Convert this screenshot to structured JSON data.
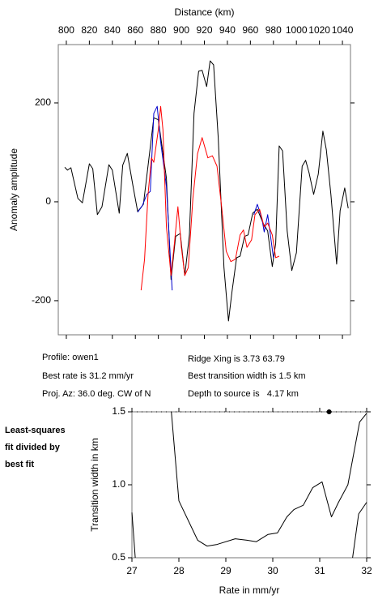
{
  "chart_data": [
    {
      "type": "line",
      "title": "Distance (km)",
      "y_label": "Anomaly amplitude",
      "xaxis_position": "top",
      "xlim": [
        793,
        1047
      ],
      "ylim": [
        -269,
        318
      ],
      "xticks": [
        800,
        820,
        840,
        860,
        880,
        900,
        920,
        940,
        960,
        980,
        1000,
        1020,
        1040
      ],
      "yticks": [
        200,
        0,
        -200
      ],
      "series": [
        {
          "color": "#000000",
          "x": [
            798.6,
            801,
            804,
            810,
            814,
            820,
            823,
            827,
            831,
            837,
            840,
            846,
            849,
            853,
            858,
            862,
            867,
            876,
            880,
            887,
            891,
            895,
            899,
            903,
            907,
            911,
            915,
            918,
            922,
            925,
            928,
            932,
            937,
            941,
            944,
            948,
            951,
            955,
            958,
            962,
            966,
            971,
            975,
            979,
            982,
            985,
            988,
            992,
            996,
            1000,
            1005,
            1008,
            1011,
            1015,
            1019,
            1023,
            1026,
            1030,
            1035,
            1038,
            1042,
            1045
          ],
          "values": [
            70,
            64,
            69,
            7,
            -2,
            77,
            67,
            -26,
            -10,
            75,
            64,
            -23,
            74,
            98,
            31,
            -20,
            -5,
            170,
            166,
            48,
            -157,
            -70,
            -64,
            -149,
            -67,
            179,
            264,
            266,
            233,
            285,
            277,
            130,
            -133,
            -241,
            -182,
            -113,
            -110,
            -70,
            -67,
            -23,
            -15,
            -43,
            -59,
            -131,
            -84,
            113,
            103,
            -59,
            -139,
            -103,
            72,
            84,
            59,
            15,
            56,
            143,
            105,
            15,
            -126,
            -18,
            28,
            -13
          ]
        },
        {
          "color": "#0000cc",
          "x": [
            862,
            866,
            870,
            873,
            876,
            879,
            882,
            887,
            892,
            930,
            963,
            966,
            970,
            972,
            975,
            980
          ],
          "values": [
            -21,
            -8,
            15,
            21,
            179,
            193,
            121,
            31,
            -179,
            null,
            -26,
            -5,
            -34,
            -61,
            -26,
            -113
          ]
        },
        {
          "color": "#ff0000",
          "x": [
            865,
            868,
            871,
            874,
            876,
            880,
            882,
            884,
            887,
            891,
            894,
            897,
            900,
            903,
            906,
            910,
            914,
            918,
            923,
            927,
            931,
            935,
            939,
            943,
            947,
            951,
            954,
            957,
            961,
            964,
            968,
            972,
            975,
            979,
            982,
            985
          ],
          "values": [
            -179,
            -116,
            15,
            89,
            80,
            146,
            193,
            146,
            -51,
            -149,
            -84,
            -10,
            -92,
            -149,
            -133,
            7,
            97,
            130,
            89,
            93,
            72,
            -10,
            -100,
            -121,
            -116,
            -67,
            -57,
            -92,
            -77,
            -26,
            -15,
            -51,
            -43,
            -67,
            -113,
            -110
          ]
        }
      ]
    },
    {
      "type": "line",
      "x_label": "Rate in mm/yr",
      "y_label": "Transition width in km",
      "xaxis_position": "bottom",
      "xlim": [
        27,
        32
      ],
      "ylim": [
        0.5,
        1.5
      ],
      "xticks": [
        27,
        28,
        29,
        30,
        31,
        32
      ],
      "yticks": [
        0.5,
        {
          "value": 1,
          "label": "1.0"
        },
        1.5
      ],
      "series": [
        {
          "color": "#000000",
          "x": [
            27.0,
            27.07
          ],
          "values": [
            0.81,
            0.5
          ]
        },
        {
          "color": "#000000",
          "x": [
            27.84,
            28.0,
            28.4,
            28.6,
            28.8,
            29.2,
            29.45,
            29.65,
            29.9,
            30.1,
            30.3,
            30.45,
            30.65,
            30.85,
            31.05,
            31.25,
            31.4,
            31.6,
            31.85,
            32.0
          ],
          "values": [
            1.5,
            0.89,
            0.62,
            0.58,
            0.59,
            0.63,
            0.62,
            0.61,
            0.66,
            0.67,
            0.78,
            0.83,
            0.86,
            0.98,
            1.02,
            0.78,
            0.88,
            1.0,
            1.43,
            1.49
          ]
        },
        {
          "color": "#000000",
          "x": [
            31.7,
            31.83,
            32.0
          ],
          "values": [
            0.5,
            0.8,
            0.88
          ]
        },
        {
          "color": "#000000",
          "marker": true,
          "x": [
            31.2
          ],
          "values": [
            1.5
          ]
        }
      ]
    }
  ],
  "info": {
    "left": [
      "Profile: owen1",
      "Best rate is 31.2 mm/yr",
      "Proj. Az: 36.0 deg. CW of N"
    ],
    "right": [
      "Ridge Xing is 3.73 63.79",
      "Best transition width is 1.5 km",
      "Depth to source is   4.17 km"
    ]
  },
  "note": [
    "Least-squares",
    "fit divided by",
    "best fit"
  ]
}
